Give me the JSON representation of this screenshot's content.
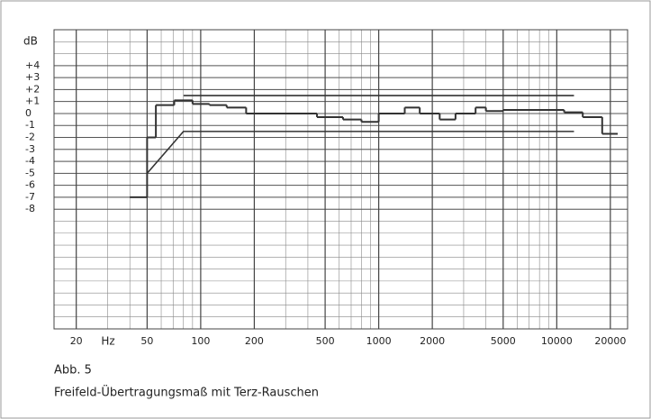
{
  "chart_data": {
    "type": "line",
    "ylabel": "dB",
    "x_unit": "Hz",
    "log_x": true,
    "grid": true,
    "color": "#333333",
    "xlim": [
      15,
      25000
    ],
    "ylim": [
      -18,
      7
    ],
    "xticks": [
      20,
      50,
      100,
      200,
      500,
      1000,
      2000,
      5000,
      10000,
      20000
    ],
    "yticks": [
      {
        "value": 4,
        "label": "+4"
      },
      {
        "value": 3,
        "label": "+3"
      },
      {
        "value": 2,
        "label": "+2"
      },
      {
        "value": 1,
        "label": "+1"
      },
      0,
      -1,
      -2,
      -3,
      -4,
      -5,
      -6,
      -7,
      -8
    ],
    "steps": {
      "edges": [
        40,
        50,
        56,
        71,
        90,
        112,
        140,
        180,
        450,
        630,
        800,
        1000,
        1400,
        1700,
        2200,
        2700,
        3500,
        4000,
        5000,
        11000,
        14000,
        18000,
        22000
      ],
      "values": [
        -7,
        -2,
        0.7,
        1.1,
        0.8,
        0.7,
        0.5,
        0,
        -0.3,
        -0.5,
        -0.7,
        0,
        0.5,
        0,
        -0.5,
        0,
        0.5,
        0.2,
        0.3,
        0.1,
        -0.3,
        -1.7
      ]
    },
    "series": [
      {
        "x": [
          80,
          12500
        ],
        "values": [
          1.5,
          1.5
        ]
      },
      {
        "x": [
          50,
          80,
          12500
        ],
        "values": [
          -5,
          -1.5,
          -1.5
        ]
      }
    ],
    "caption": [
      "Abb. 5",
      "Freifeld-Übertragungsmaß mit Terz-Rauschen"
    ]
  }
}
